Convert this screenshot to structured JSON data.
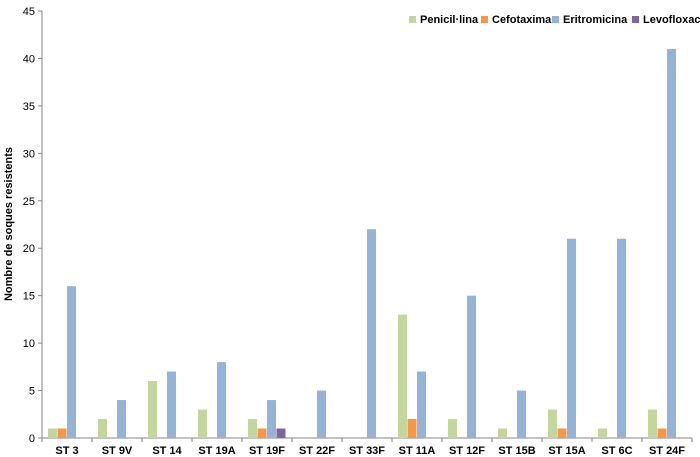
{
  "chart_data": {
    "type": "bar",
    "title": "",
    "xlabel": "",
    "ylabel": "Nombre de soques resistents",
    "ylim": [
      0,
      45
    ],
    "yticks": [
      0,
      5,
      10,
      15,
      20,
      25,
      30,
      35,
      40,
      45
    ],
    "grid": false,
    "legend_position": "top-right",
    "categories": [
      "ST 3",
      "ST 9V",
      "ST 14",
      "ST 19A",
      "ST 19F",
      "ST 22F",
      "ST 33F",
      "ST 11A",
      "ST 12F",
      "ST 15B",
      "ST 15A",
      "ST 6C",
      "ST 24F"
    ],
    "series": [
      {
        "name": "Penicil·lina",
        "color": "#c3d69b",
        "values": [
          1,
          2,
          6,
          3,
          2,
          0,
          0,
          13,
          2,
          1,
          3,
          1,
          3
        ]
      },
      {
        "name": "Cefotaxima",
        "color": "#f79646",
        "values": [
          1,
          0,
          0,
          0,
          1,
          0,
          0,
          2,
          0,
          0,
          1,
          0,
          1
        ]
      },
      {
        "name": "Eritromicina",
        "color": "#95b3d7",
        "values": [
          16,
          4,
          7,
          8,
          4,
          5,
          22,
          7,
          15,
          5,
          21,
          21,
          41
        ]
      },
      {
        "name": "Levofloxacina",
        "color": "#8064a2",
        "values": [
          0,
          0,
          0,
          0,
          1,
          0,
          0,
          0,
          0,
          0,
          0,
          0,
          0
        ]
      }
    ]
  }
}
